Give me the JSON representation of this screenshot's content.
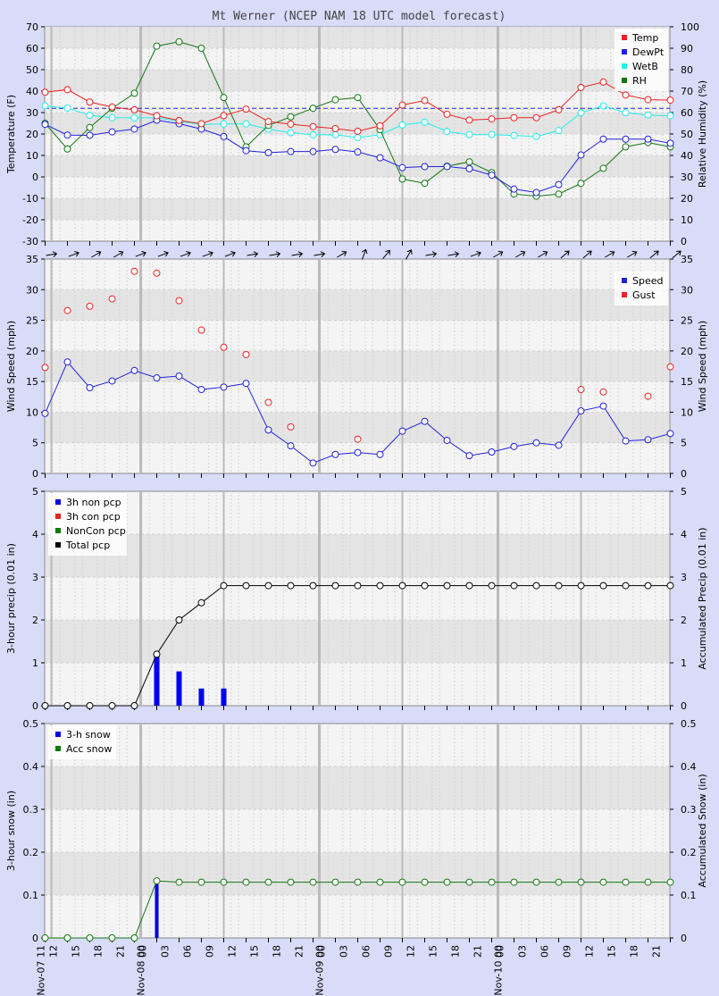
{
  "title": "Mt Werner (NCEP NAM 18 UTC model forecast)",
  "x_tick_labels": [
    "12",
    "15",
    "18",
    "21",
    "00",
    "03",
    "06",
    "09",
    "12",
    "15",
    "18",
    "21",
    "00",
    "03",
    "06",
    "09",
    "12",
    "15",
    "18",
    "21",
    "00",
    "03",
    "06",
    "09",
    "12",
    "15",
    "18",
    "21"
  ],
  "date_labels": [
    "Nov-07 11",
    "Nov-08 00",
    "Nov-09 00",
    "Nov-10 00"
  ],
  "colors": {
    "temp": "#ee2222",
    "dewpt": "#2222dd",
    "wetb": "#22eeee",
    "rh": "#117711",
    "speed": "#2222dd",
    "gust": "#ee2222",
    "bar": "#0000ee",
    "total": "#000000",
    "acc_snow": "#117711",
    "freezing_line": "#2222dd",
    "page_bg": "#d8dcf8",
    "plot_bg": "#f4f4f4",
    "band_bg": "#e4e4e4",
    "day_line": "#bbbbbb"
  },
  "chart_data": [
    {
      "type": "line",
      "ylabel": "Temperature (F)",
      "y2label": "Relative Humidity (%)",
      "ylim": [
        -30,
        70
      ],
      "y2lim": [
        0,
        100
      ],
      "legend_position": "top-right",
      "freezing_line_y": 32,
      "series": [
        {
          "name": "Temp",
          "axis": "left",
          "values": [
            39.5,
            40.7,
            34.9,
            32.6,
            31.3,
            28.5,
            26.3,
            24.8,
            28.6,
            31.6,
            25.8,
            24.6,
            23.5,
            22.5,
            21.3,
            23.8,
            33.5,
            35.6,
            29.2,
            26.5,
            27.0,
            27.6,
            27.6,
            31.3,
            41.7,
            44.2,
            38.2,
            36.0,
            35.8
          ]
        },
        {
          "name": "DewPt",
          "axis": "left",
          "values": [
            24.5,
            19.5,
            19.4,
            21.0,
            22.3,
            26.4,
            24.8,
            22.3,
            18.8,
            12.2,
            11.3,
            11.8,
            11.8,
            12.8,
            11.6,
            8.9,
            4.3,
            4.8,
            4.8,
            3.8,
            0.8,
            -5.7,
            -7.3,
            -3.6,
            10.2,
            17.6,
            17.6,
            17.6,
            15.7
          ]
        },
        {
          "name": "WetB",
          "axis": "left",
          "values": [
            33.1,
            32.1,
            28.7,
            27.6,
            27.5,
            27.6,
            25.9,
            24.5,
            24.7,
            24.7,
            22.3,
            20.6,
            19.6,
            19.7,
            18.3,
            19.7,
            24.2,
            25.5,
            21.2,
            19.7,
            19.7,
            19.3,
            18.8,
            21.6,
            29.9,
            33.1,
            29.9,
            28.8,
            28.5
          ]
        },
        {
          "name": "RH",
          "axis": "right",
          "values": [
            55,
            43,
            53,
            62,
            69,
            91,
            93,
            90,
            67,
            44,
            54,
            58,
            62,
            66,
            67,
            52,
            29,
            27,
            35,
            37,
            32,
            22,
            21,
            22,
            27,
            34,
            44,
            46,
            44
          ]
        }
      ]
    },
    {
      "type": "scatter",
      "ylabel": "Wind Speed (mph)",
      "y2label": "Wind Speed (mph)",
      "ylim": [
        0,
        35
      ],
      "legend_position": "top-right",
      "wind_directions": [
        80,
        70,
        60,
        60,
        70,
        70,
        70,
        70,
        70,
        80,
        80,
        80,
        80,
        60,
        20,
        40,
        30,
        80,
        80,
        70,
        60,
        60,
        60,
        50,
        50,
        60,
        60,
        50,
        50
      ],
      "series": [
        {
          "name": "Speed",
          "connected": true,
          "values": [
            9.8,
            18.2,
            14.0,
            15.1,
            16.8,
            15.6,
            15.9,
            13.7,
            14.1,
            14.7,
            7.1,
            4.5,
            1.7,
            3.1,
            3.4,
            3.1,
            6.9,
            8.5,
            5.4,
            2.9,
            3.5,
            4.4,
            5.0,
            4.6,
            10.2,
            11.0,
            5.3,
            5.5,
            6.5
          ]
        },
        {
          "name": "Gust",
          "connected": false,
          "values": [
            17.3,
            26.6,
            27.3,
            28.5,
            33.0,
            32.7,
            28.2,
            23.4,
            20.6,
            19.4,
            11.6,
            7.6,
            null,
            null,
            5.6,
            null,
            null,
            null,
            null,
            null,
            null,
            null,
            null,
            null,
            13.7,
            13.3,
            null,
            12.6,
            17.4
          ]
        }
      ]
    },
    {
      "type": "bar",
      "ylabel": "3-hour precip (0.01 in)",
      "y2label": "Accumulated Precip (0.01 in)",
      "ylim": [
        0,
        5
      ],
      "legend_position": "top-left",
      "series": [
        {
          "name": "3h non pcp",
          "kind": "bar",
          "values": [
            0,
            0,
            0,
            0,
            0,
            1.2,
            0.8,
            0.4,
            0.4,
            0,
            0,
            0,
            0,
            0,
            0,
            0,
            0,
            0,
            0,
            0,
            0,
            0,
            0,
            0,
            0,
            0,
            0,
            0,
            0
          ]
        },
        {
          "name": "3h con pcp",
          "kind": "bar",
          "values": [
            0,
            0,
            0,
            0,
            0,
            0,
            0,
            0,
            0,
            0,
            0,
            0,
            0,
            0,
            0,
            0,
            0,
            0,
            0,
            0,
            0,
            0,
            0,
            0,
            0,
            0,
            0,
            0,
            0
          ]
        },
        {
          "name": "NonCon pcp",
          "kind": "line",
          "values": [
            0,
            0,
            0,
            0,
            0,
            1.2,
            2.0,
            2.4,
            2.8,
            2.8,
            2.8,
            2.8,
            2.8,
            2.8,
            2.8,
            2.8,
            2.8,
            2.8,
            2.8,
            2.8,
            2.8,
            2.8,
            2.8,
            2.8,
            2.8,
            2.8,
            2.8,
            2.8,
            2.8
          ]
        },
        {
          "name": "Total pcp",
          "kind": "line",
          "values": [
            0,
            0,
            0,
            0,
            0,
            1.2,
            2.0,
            2.4,
            2.8,
            2.8,
            2.8,
            2.8,
            2.8,
            2.8,
            2.8,
            2.8,
            2.8,
            2.8,
            2.8,
            2.8,
            2.8,
            2.8,
            2.8,
            2.8,
            2.8,
            2.8,
            2.8,
            2.8,
            2.8
          ]
        }
      ]
    },
    {
      "type": "bar",
      "ylabel": "3-hour snow (in)",
      "y2label": "Accumulated Snow (in)",
      "ylim": [
        0,
        0.5
      ],
      "legend_position": "top-left",
      "series": [
        {
          "name": "3-h snow",
          "kind": "bar",
          "values": [
            0,
            0,
            0,
            0,
            0,
            0.13,
            0,
            0,
            0,
            0,
            0,
            0,
            0,
            0,
            0,
            0,
            0,
            0,
            0,
            0,
            0,
            0,
            0,
            0,
            0,
            0,
            0,
            0,
            0
          ]
        },
        {
          "name": "Acc snow",
          "kind": "line",
          "values": [
            0,
            0,
            0,
            0,
            0,
            0.133,
            0.13,
            0.13,
            0.13,
            0.13,
            0.13,
            0.13,
            0.13,
            0.13,
            0.13,
            0.13,
            0.13,
            0.13,
            0.13,
            0.13,
            0.13,
            0.13,
            0.13,
            0.13,
            0.13,
            0.13,
            0.13,
            0.13,
            0.13
          ]
        }
      ]
    }
  ]
}
